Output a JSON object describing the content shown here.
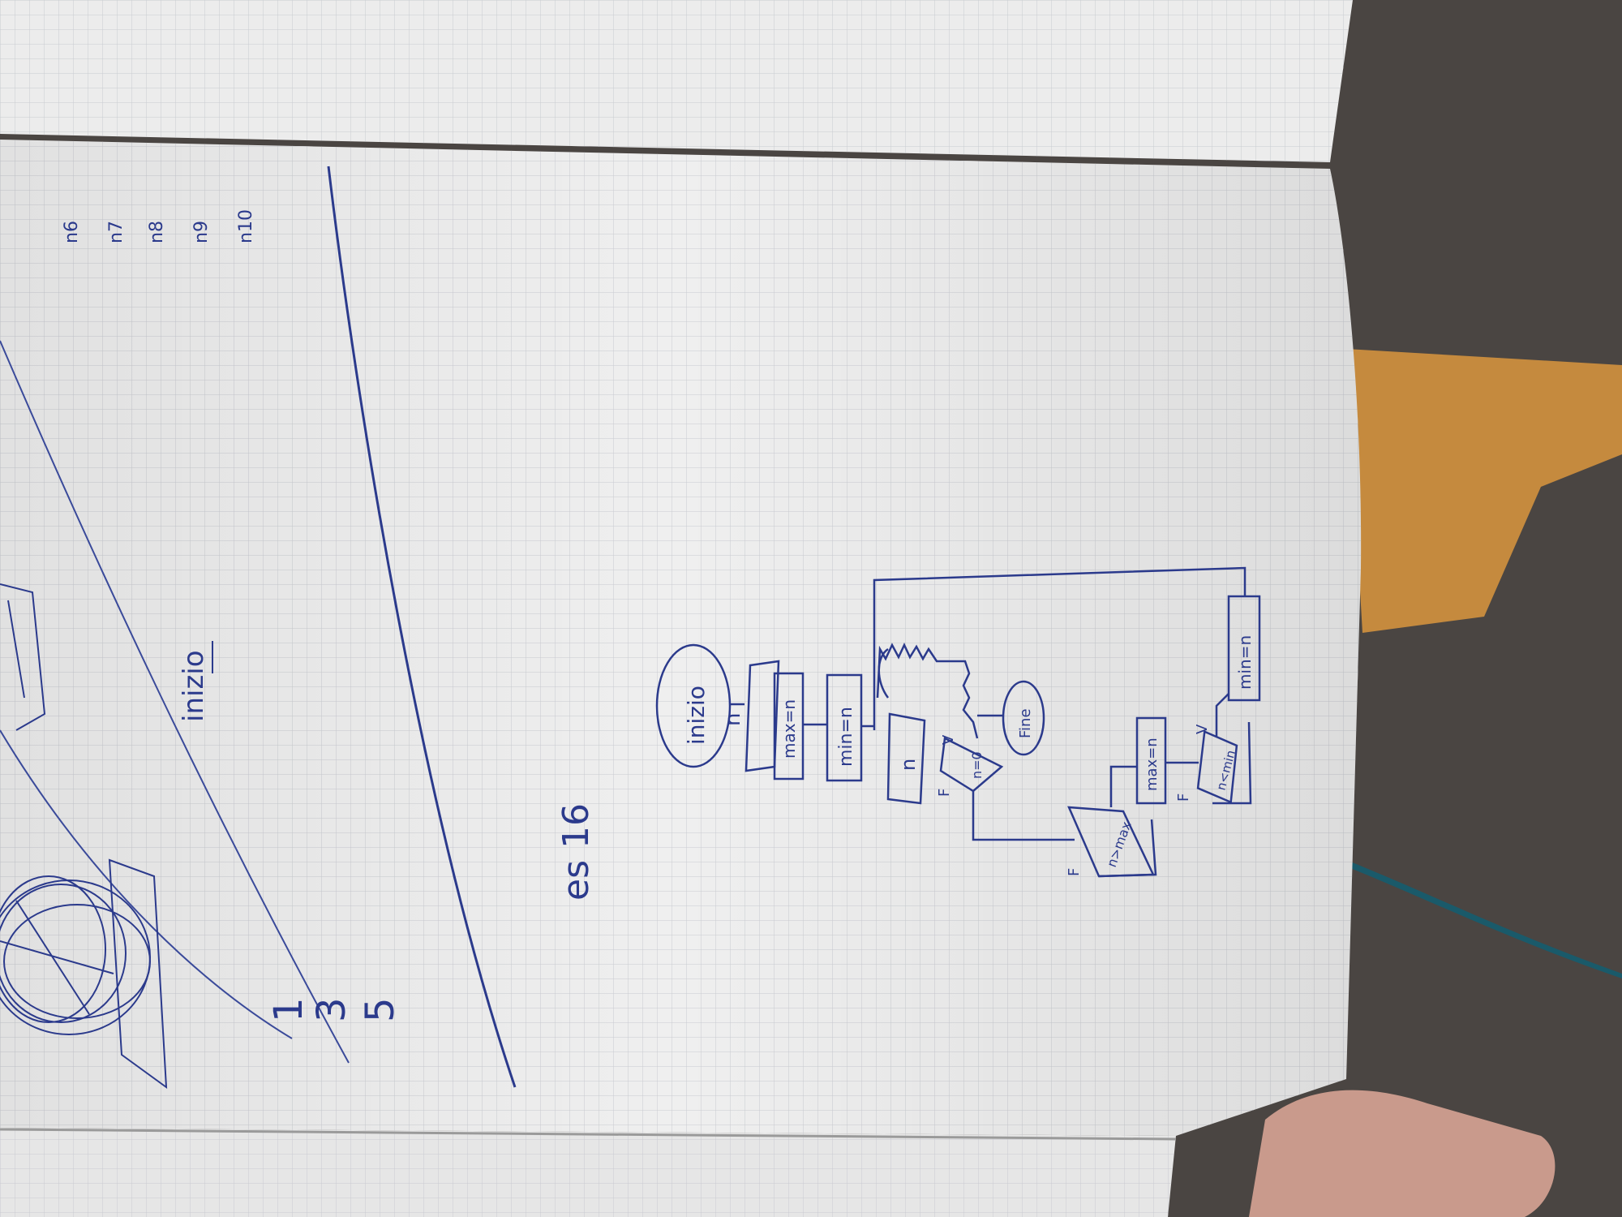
{
  "flowchart": {
    "start_label": "inizio",
    "input_label": "n",
    "max_assign": "max=n",
    "min_assign": "min=n",
    "loop_input_label": "n",
    "condition_zero": "n=0",
    "end_label": "Fine",
    "condition_max": "n>max",
    "max_update": "max=n",
    "condition_min": "n<min",
    "min_update": "min=n",
    "true_flag": "V",
    "false_flag": "F"
  },
  "notes": {
    "exercise_label": "es 16",
    "left_start_label": "inizio",
    "numbers": [
      "1",
      "3",
      "5"
    ],
    "column_labels": [
      "n6",
      "n7",
      "n8",
      "n9",
      "n10"
    ]
  },
  "colors": {
    "ink": "#2b3a8c",
    "paper": "#efefef",
    "grid": "#c9cbd1",
    "wood": "#c58a3e",
    "fabric": "#4a4542"
  }
}
